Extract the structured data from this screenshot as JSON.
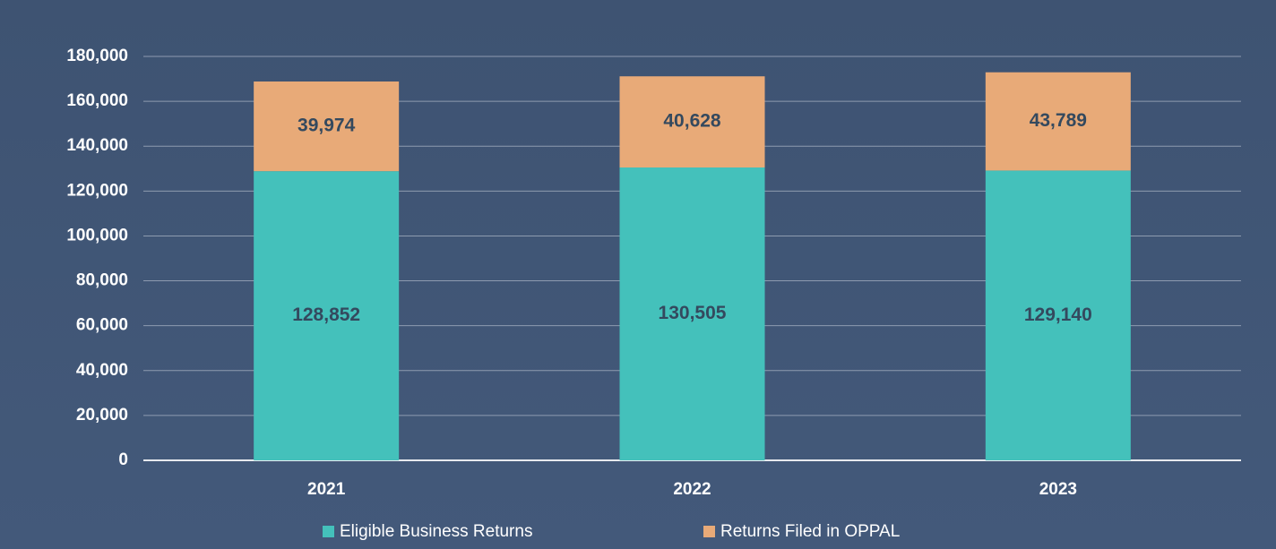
{
  "chart_data": {
    "type": "stacked_bar",
    "categories": [
      "2021",
      "2022",
      "2023"
    ],
    "series": [
      {
        "name": "Eligible Business Returns",
        "color": "#44c1bb",
        "values": [
          128852,
          130505,
          129140
        ],
        "value_labels": [
          "128,852",
          "130,505",
          "129,140"
        ]
      },
      {
        "name": "Returns Filed in OPPAL",
        "color": "#e8aa78",
        "values": [
          39974,
          40628,
          43789
        ],
        "value_labels": [
          "39,974",
          "40,628",
          "43,789"
        ]
      }
    ],
    "ylim": [
      0,
      180000
    ],
    "yticks": [
      0,
      {
        "value": 20000,
        "label": "20,000"
      },
      {
        "value": 40000,
        "label": "40,000"
      },
      {
        "value": 60000,
        "label": "60,000"
      },
      {
        "value": 80000,
        "label": "80,000"
      },
      {
        "value": 100000,
        "label": "100,000"
      },
      {
        "value": 120000,
        "label": "120,000"
      },
      {
        "value": 140000,
        "label": "140,000"
      },
      {
        "value": 160000,
        "label": "160,000"
      },
      {
        "value": {
          "value": 180000,
          "label": "180,000"
        }
      }
    ],
    "grid": true,
    "legend": "bottom"
  }
}
